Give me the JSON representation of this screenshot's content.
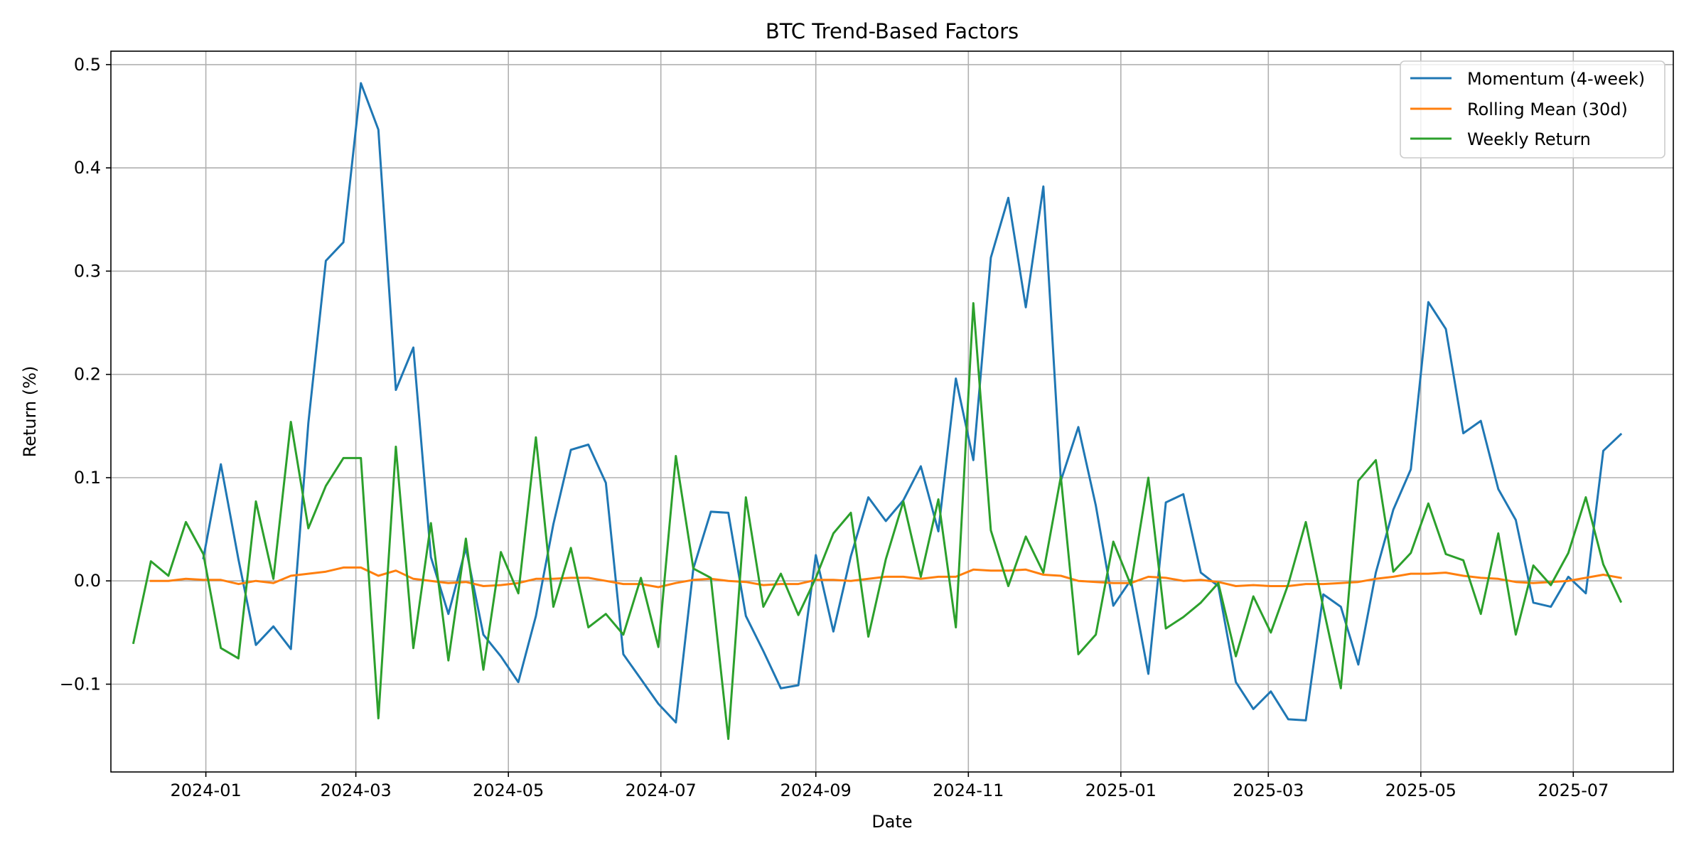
{
  "chart_data": {
    "type": "line",
    "title": "BTC Trend-Based Factors",
    "xlabel": "Date",
    "ylabel": "Return (%)",
    "x_axis_type": "date",
    "xlim": [
      "2023-11-24",
      "2025-08-10"
    ],
    "ylim": [
      -0.185,
      0.513
    ],
    "grid": true,
    "legend_position": "top-right",
    "x_ticks": [
      "2024-01-01",
      "2024-03-01",
      "2024-05-01",
      "2024-07-01",
      "2024-09-01",
      "2024-11-01",
      "2025-01-01",
      "2025-03-01",
      "2025-05-01",
      "2025-07-01"
    ],
    "x_tick_labels": [
      "2024-01",
      "2024-03",
      "2024-05",
      "2024-07",
      "2024-09",
      "2024-11",
      "2025-01",
      "2025-03",
      "2025-05",
      "2025-07"
    ],
    "y_ticks": [
      -0.1,
      0.0,
      0.1,
      0.2,
      0.3,
      0.4,
      0.5
    ],
    "y_tick_labels": [
      "−0.1",
      "0.0",
      "0.1",
      "0.2",
      "0.3",
      "0.4",
      "0.5"
    ],
    "series": [
      {
        "name": "Momentum (4-week)",
        "color": "#1f77b4",
        "points": [
          [
            "2023-12-31",
            0.022
          ],
          [
            "2024-01-07",
            0.113
          ],
          [
            "2024-01-14",
            0.021
          ],
          [
            "2024-01-21",
            -0.062
          ],
          [
            "2024-01-28",
            -0.044
          ],
          [
            "2024-02-04",
            -0.066
          ],
          [
            "2024-02-11",
            0.153
          ],
          [
            "2024-02-18",
            0.31
          ],
          [
            "2024-02-25",
            0.328
          ],
          [
            "2024-03-03",
            0.482
          ],
          [
            "2024-03-10",
            0.437
          ],
          [
            "2024-03-17",
            0.185
          ],
          [
            "2024-03-24",
            0.226
          ],
          [
            "2024-03-31",
            0.023
          ],
          [
            "2024-04-07",
            -0.032
          ],
          [
            "2024-04-14",
            0.032
          ],
          [
            "2024-04-21",
            -0.052
          ],
          [
            "2024-04-28",
            -0.073
          ],
          [
            "2024-05-05",
            -0.098
          ],
          [
            "2024-05-12",
            -0.034
          ],
          [
            "2024-05-19",
            0.055
          ],
          [
            "2024-05-26",
            0.127
          ],
          [
            "2024-06-02",
            0.132
          ],
          [
            "2024-06-09",
            0.095
          ],
          [
            "2024-06-16",
            -0.071
          ],
          [
            "2024-06-23",
            -0.095
          ],
          [
            "2024-06-30",
            -0.119
          ],
          [
            "2024-07-07",
            -0.137
          ],
          [
            "2024-07-14",
            0.012
          ],
          [
            "2024-07-21",
            0.067
          ],
          [
            "2024-07-28",
            0.066
          ],
          [
            "2024-08-04",
            -0.034
          ],
          [
            "2024-08-11",
            -0.068
          ],
          [
            "2024-08-18",
            -0.104
          ],
          [
            "2024-08-25",
            -0.101
          ],
          [
            "2024-09-01",
            0.025
          ],
          [
            "2024-09-08",
            -0.049
          ],
          [
            "2024-09-15",
            0.024
          ],
          [
            "2024-09-22",
            0.081
          ],
          [
            "2024-09-29",
            0.058
          ],
          [
            "2024-10-06",
            0.078
          ],
          [
            "2024-10-13",
            0.111
          ],
          [
            "2024-10-20",
            0.048
          ],
          [
            "2024-10-27",
            0.196
          ],
          [
            "2024-11-03",
            0.117
          ],
          [
            "2024-11-10",
            0.313
          ],
          [
            "2024-11-17",
            0.371
          ],
          [
            "2024-11-24",
            0.265
          ],
          [
            "2024-12-01",
            0.382
          ],
          [
            "2024-12-08",
            0.097
          ],
          [
            "2024-12-15",
            0.149
          ],
          [
            "2024-12-22",
            0.073
          ],
          [
            "2024-12-29",
            -0.024
          ],
          [
            "2025-01-05",
            0.001
          ],
          [
            "2025-01-12",
            -0.09
          ],
          [
            "2025-01-19",
            0.076
          ],
          [
            "2025-01-26",
            0.084
          ],
          [
            "2025-02-02",
            0.008
          ],
          [
            "2025-02-09",
            -0.005
          ],
          [
            "2025-02-16",
            -0.098
          ],
          [
            "2025-02-23",
            -0.124
          ],
          [
            "2025-03-02",
            -0.107
          ],
          [
            "2025-03-09",
            -0.134
          ],
          [
            "2025-03-16",
            -0.135
          ],
          [
            "2025-03-23",
            -0.013
          ],
          [
            "2025-03-30",
            -0.025
          ],
          [
            "2025-04-06",
            -0.081
          ],
          [
            "2025-04-13",
            0.008
          ],
          [
            "2025-04-20",
            0.069
          ],
          [
            "2025-04-27",
            0.108
          ],
          [
            "2025-05-04",
            0.27
          ],
          [
            "2025-05-11",
            0.244
          ],
          [
            "2025-05-18",
            0.143
          ],
          [
            "2025-05-25",
            0.155
          ],
          [
            "2025-06-01",
            0.089
          ],
          [
            "2025-06-08",
            0.059
          ],
          [
            "2025-06-15",
            -0.021
          ],
          [
            "2025-06-22",
            -0.025
          ],
          [
            "2025-06-29",
            0.004
          ],
          [
            "2025-07-06",
            -0.012
          ],
          [
            "2025-07-13",
            0.126
          ],
          [
            "2025-07-20",
            0.142
          ]
        ]
      },
      {
        "name": "Rolling Mean (30d)",
        "color": "#ff7f0e",
        "points": [
          [
            "2023-12-10",
            0.0
          ],
          [
            "2023-12-17",
            0.0
          ],
          [
            "2023-12-24",
            0.002
          ],
          [
            "2023-12-31",
            0.001
          ],
          [
            "2024-01-07",
            0.001
          ],
          [
            "2024-01-14",
            -0.003
          ],
          [
            "2024-01-21",
            0.0
          ],
          [
            "2024-01-28",
            -0.002
          ],
          [
            "2024-02-04",
            0.005
          ],
          [
            "2024-02-11",
            0.007
          ],
          [
            "2024-02-18",
            0.009
          ],
          [
            "2024-02-25",
            0.013
          ],
          [
            "2024-03-03",
            0.013
          ],
          [
            "2024-03-10",
            0.005
          ],
          [
            "2024-03-17",
            0.01
          ],
          [
            "2024-03-24",
            0.002
          ],
          [
            "2024-03-31",
            0.0
          ],
          [
            "2024-04-07",
            -0.002
          ],
          [
            "2024-04-14",
            -0.001
          ],
          [
            "2024-04-21",
            -0.005
          ],
          [
            "2024-04-28",
            -0.004
          ],
          [
            "2024-05-05",
            -0.002
          ],
          [
            "2024-05-12",
            0.002
          ],
          [
            "2024-05-19",
            0.002
          ],
          [
            "2024-05-26",
            0.003
          ],
          [
            "2024-06-02",
            0.003
          ],
          [
            "2024-06-09",
            0.0
          ],
          [
            "2024-06-16",
            -0.003
          ],
          [
            "2024-06-23",
            -0.003
          ],
          [
            "2024-06-30",
            -0.006
          ],
          [
            "2024-07-07",
            -0.002
          ],
          [
            "2024-07-14",
            0.001
          ],
          [
            "2024-07-21",
            0.002
          ],
          [
            "2024-07-28",
            0.0
          ],
          [
            "2024-08-04",
            -0.001
          ],
          [
            "2024-08-11",
            -0.004
          ],
          [
            "2024-08-18",
            -0.003
          ],
          [
            "2024-08-25",
            -0.003
          ],
          [
            "2024-09-01",
            0.001
          ],
          [
            "2024-09-08",
            0.001
          ],
          [
            "2024-09-15",
            0.0
          ],
          [
            "2024-09-22",
            0.002
          ],
          [
            "2024-09-29",
            0.004
          ],
          [
            "2024-10-06",
            0.004
          ],
          [
            "2024-10-13",
            0.002
          ],
          [
            "2024-10-20",
            0.004
          ],
          [
            "2024-10-27",
            0.004
          ],
          [
            "2024-11-03",
            0.011
          ],
          [
            "2024-11-10",
            0.01
          ],
          [
            "2024-11-17",
            0.01
          ],
          [
            "2024-11-24",
            0.011
          ],
          [
            "2024-12-01",
            0.006
          ],
          [
            "2024-12-08",
            0.005
          ],
          [
            "2024-12-15",
            0.0
          ],
          [
            "2024-12-22",
            -0.001
          ],
          [
            "2024-12-29",
            -0.002
          ],
          [
            "2025-01-05",
            -0.002
          ],
          [
            "2025-01-12",
            0.004
          ],
          [
            "2025-01-19",
            0.003
          ],
          [
            "2025-01-26",
            0.0
          ],
          [
            "2025-02-02",
            0.001
          ],
          [
            "2025-02-09",
            -0.001
          ],
          [
            "2025-02-16",
            -0.005
          ],
          [
            "2025-02-23",
            -0.004
          ],
          [
            "2025-03-02",
            -0.005
          ],
          [
            "2025-03-09",
            -0.005
          ],
          [
            "2025-03-16",
            -0.003
          ],
          [
            "2025-03-23",
            -0.003
          ],
          [
            "2025-03-30",
            -0.002
          ],
          [
            "2025-04-06",
            -0.001
          ],
          [
            "2025-04-13",
            0.002
          ],
          [
            "2025-04-20",
            0.004
          ],
          [
            "2025-04-27",
            0.007
          ],
          [
            "2025-05-04",
            0.007
          ],
          [
            "2025-05-11",
            0.008
          ],
          [
            "2025-05-18",
            0.005
          ],
          [
            "2025-05-25",
            0.003
          ],
          [
            "2025-06-01",
            0.002
          ],
          [
            "2025-06-08",
            -0.001
          ],
          [
            "2025-06-15",
            -0.002
          ],
          [
            "2025-06-22",
            -0.001
          ],
          [
            "2025-06-29",
            0.0
          ],
          [
            "2025-07-06",
            0.003
          ],
          [
            "2025-07-13",
            0.006
          ],
          [
            "2025-07-20",
            0.003
          ]
        ]
      },
      {
        "name": "Weekly Return",
        "color": "#2ca02c",
        "points": [
          [
            "2023-12-03",
            -0.06
          ],
          [
            "2023-12-10",
            0.019
          ],
          [
            "2023-12-17",
            0.005
          ],
          [
            "2023-12-24",
            0.057
          ],
          [
            "2023-12-31",
            0.026
          ],
          [
            "2024-01-07",
            -0.065
          ],
          [
            "2024-01-14",
            -0.075
          ],
          [
            "2024-01-21",
            0.077
          ],
          [
            "2024-01-28",
            0.002
          ],
          [
            "2024-02-04",
            0.154
          ],
          [
            "2024-02-11",
            0.051
          ],
          [
            "2024-02-18",
            0.092
          ],
          [
            "2024-02-25",
            0.119
          ],
          [
            "2024-03-03",
            0.119
          ],
          [
            "2024-03-10",
            -0.133
          ],
          [
            "2024-03-17",
            0.13
          ],
          [
            "2024-03-24",
            -0.065
          ],
          [
            "2024-03-31",
            0.056
          ],
          [
            "2024-04-07",
            -0.077
          ],
          [
            "2024-04-14",
            0.041
          ],
          [
            "2024-04-21",
            -0.086
          ],
          [
            "2024-04-28",
            0.028
          ],
          [
            "2024-05-05",
            -0.012
          ],
          [
            "2024-05-12",
            0.139
          ],
          [
            "2024-05-19",
            -0.025
          ],
          [
            "2024-05-26",
            0.032
          ],
          [
            "2024-06-02",
            -0.045
          ],
          [
            "2024-06-09",
            -0.032
          ],
          [
            "2024-06-16",
            -0.052
          ],
          [
            "2024-06-23",
            0.003
          ],
          [
            "2024-06-30",
            -0.064
          ],
          [
            "2024-07-07",
            0.121
          ],
          [
            "2024-07-14",
            0.012
          ],
          [
            "2024-07-21",
            0.003
          ],
          [
            "2024-07-28",
            -0.153
          ],
          [
            "2024-08-04",
            0.081
          ],
          [
            "2024-08-11",
            -0.025
          ],
          [
            "2024-08-18",
            0.007
          ],
          [
            "2024-08-25",
            -0.033
          ],
          [
            "2024-09-01",
            0.003
          ],
          [
            "2024-09-08",
            0.046
          ],
          [
            "2024-09-15",
            0.066
          ],
          [
            "2024-09-22",
            -0.054
          ],
          [
            "2024-09-29",
            0.021
          ],
          [
            "2024-10-06",
            0.077
          ],
          [
            "2024-10-13",
            0.004
          ],
          [
            "2024-10-20",
            0.079
          ],
          [
            "2024-10-27",
            -0.045
          ],
          [
            "2024-11-03",
            0.269
          ],
          [
            "2024-11-10",
            0.049
          ],
          [
            "2024-11-17",
            -0.005
          ],
          [
            "2024-11-24",
            0.043
          ],
          [
            "2024-12-01",
            0.008
          ],
          [
            "2024-12-08",
            0.101
          ],
          [
            "2024-12-15",
            -0.071
          ],
          [
            "2024-12-22",
            -0.052
          ],
          [
            "2024-12-29",
            0.038
          ],
          [
            "2025-01-05",
            -0.004
          ],
          [
            "2025-01-12",
            0.1
          ],
          [
            "2025-01-19",
            -0.046
          ],
          [
            "2025-01-26",
            -0.035
          ],
          [
            "2025-02-02",
            -0.021
          ],
          [
            "2025-02-09",
            -0.002
          ],
          [
            "2025-02-16",
            -0.073
          ],
          [
            "2025-02-23",
            -0.015
          ],
          [
            "2025-03-02",
            -0.05
          ],
          [
            "2025-03-09",
            -0.003
          ],
          [
            "2025-03-16",
            0.057
          ],
          [
            "2025-03-23",
            -0.026
          ],
          [
            "2025-03-30",
            -0.104
          ],
          [
            "2025-04-06",
            0.097
          ],
          [
            "2025-04-13",
            0.117
          ],
          [
            "2025-04-20",
            0.009
          ],
          [
            "2025-04-27",
            0.027
          ],
          [
            "2025-05-04",
            0.075
          ],
          [
            "2025-05-11",
            0.026
          ],
          [
            "2025-05-18",
            0.02
          ],
          [
            "2025-05-25",
            -0.032
          ],
          [
            "2025-06-01",
            0.046
          ],
          [
            "2025-06-08",
            -0.052
          ],
          [
            "2025-06-15",
            0.015
          ],
          [
            "2025-06-22",
            -0.004
          ],
          [
            "2025-06-29",
            0.027
          ],
          [
            "2025-07-06",
            0.081
          ],
          [
            "2025-07-13",
            0.016
          ],
          [
            "2025-07-20",
            -0.02
          ]
        ]
      }
    ]
  }
}
